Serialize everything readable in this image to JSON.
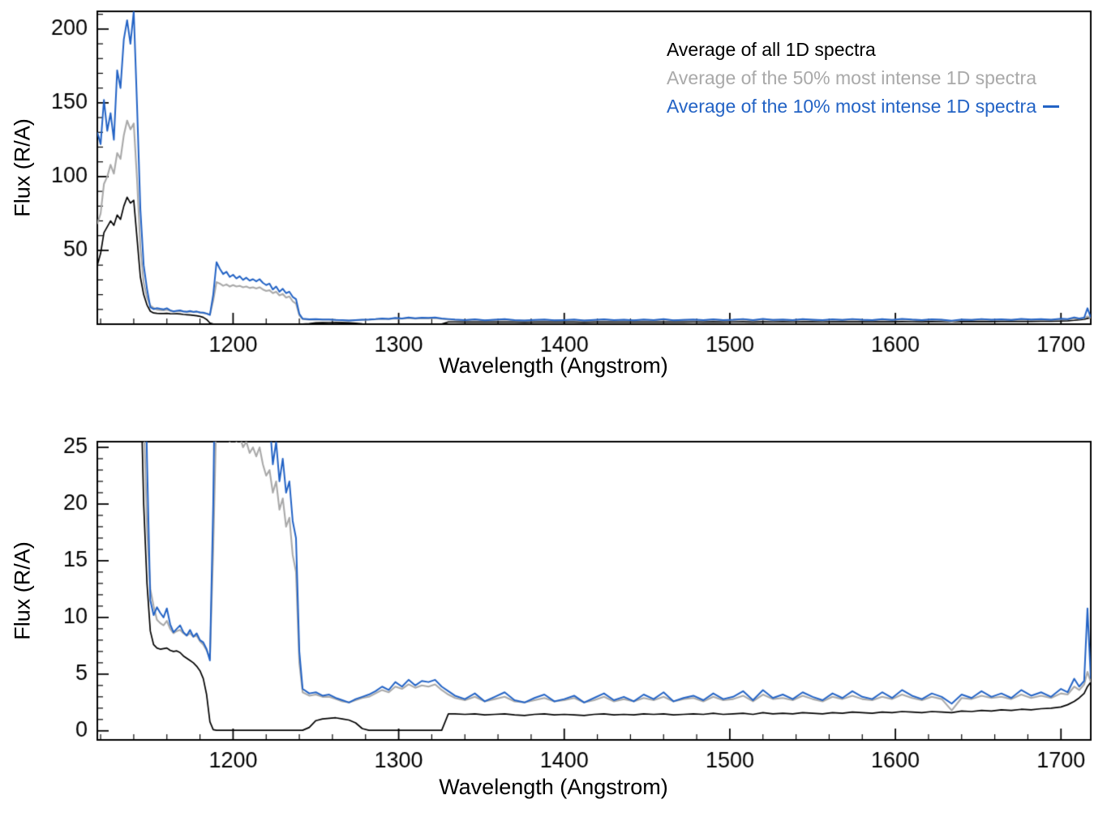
{
  "figure": {
    "background": "#ffffff"
  },
  "legend": {
    "items": [
      {
        "label": "Average of all 1D spectra",
        "color": "#000000",
        "line_sample": false
      },
      {
        "label": "Average of the 50% most intense 1D spectra",
        "color": "#a9a9a9",
        "line_sample": false
      },
      {
        "label": "Average of the 10% most intense 1D spectra",
        "color": "#2363c5",
        "line_sample": true
      }
    ]
  },
  "chart_data": {
    "type": "line",
    "title": "",
    "xlabel": "Wavelength (Angstrom)",
    "ylabel": "Flux (R/A)",
    "grid": false,
    "legend_position": "top-right-inside",
    "x": [
      1118,
      1120,
      1122,
      1124,
      1126,
      1128,
      1130,
      1132,
      1134,
      1136,
      1138,
      1140,
      1142,
      1144,
      1146,
      1148,
      1150,
      1152,
      1154,
      1156,
      1158,
      1160,
      1162,
      1164,
      1166,
      1168,
      1170,
      1172,
      1174,
      1176,
      1178,
      1180,
      1182,
      1184,
      1186,
      1188,
      1190,
      1192,
      1194,
      1196,
      1198,
      1200,
      1202,
      1204,
      1206,
      1208,
      1210,
      1212,
      1214,
      1216,
      1218,
      1220,
      1222,
      1224,
      1226,
      1228,
      1230,
      1232,
      1234,
      1236,
      1238,
      1240,
      1242,
      1246,
      1250,
      1254,
      1258,
      1262,
      1266,
      1270,
      1274,
      1278,
      1282,
      1286,
      1290,
      1294,
      1298,
      1302,
      1306,
      1310,
      1314,
      1318,
      1322,
      1326,
      1330,
      1334,
      1340,
      1346,
      1352,
      1358,
      1364,
      1370,
      1376,
      1382,
      1388,
      1394,
      1400,
      1406,
      1412,
      1418,
      1424,
      1430,
      1436,
      1442,
      1448,
      1454,
      1460,
      1466,
      1472,
      1478,
      1484,
      1490,
      1496,
      1502,
      1508,
      1514,
      1520,
      1526,
      1532,
      1538,
      1544,
      1550,
      1556,
      1562,
      1568,
      1574,
      1580,
      1586,
      1592,
      1598,
      1604,
      1610,
      1616,
      1622,
      1628,
      1634,
      1640,
      1646,
      1652,
      1658,
      1664,
      1670,
      1676,
      1682,
      1688,
      1694,
      1700,
      1704,
      1708,
      1711,
      1714,
      1716,
      1718
    ],
    "series": [
      {
        "name": "Average of all 1D spectra",
        "color": "#000000",
        "width": 1.7,
        "values": [
          40,
          48,
          62,
          66,
          70,
          67,
          74,
          71,
          80,
          86,
          82,
          84,
          58,
          32,
          20,
          13,
          8.8,
          7.6,
          7.3,
          7.2,
          7.25,
          7.3,
          7.1,
          7,
          7.05,
          6.9,
          6.6,
          6.4,
          6.2,
          6,
          5.7,
          5.3,
          4.6,
          3.2,
          0.8,
          0.1,
          0.05,
          0.05,
          0.05,
          0.05,
          0.05,
          0.05,
          0.05,
          0.05,
          0.05,
          0.05,
          0.05,
          0.05,
          0.05,
          0.05,
          0.05,
          0.05,
          0.05,
          0.05,
          0.05,
          0.05,
          0.05,
          0.05,
          0.05,
          0.05,
          0.05,
          0.05,
          0.05,
          0.3,
          0.9,
          1.05,
          1.1,
          1.15,
          1.05,
          0.95,
          0.7,
          0.2,
          0.05,
          0.05,
          0.05,
          0.05,
          0.05,
          0.05,
          0.05,
          0.05,
          0.05,
          0.05,
          0.05,
          0.05,
          1.5,
          1.5,
          1.45,
          1.5,
          1.4,
          1.45,
          1.5,
          1.4,
          1.35,
          1.45,
          1.5,
          1.4,
          1.45,
          1.4,
          1.35,
          1.45,
          1.5,
          1.4,
          1.45,
          1.4,
          1.5,
          1.45,
          1.5,
          1.4,
          1.45,
          1.5,
          1.45,
          1.55,
          1.45,
          1.5,
          1.55,
          1.45,
          1.6,
          1.5,
          1.55,
          1.5,
          1.6,
          1.55,
          1.5,
          1.6,
          1.55,
          1.65,
          1.6,
          1.55,
          1.65,
          1.6,
          1.7,
          1.65,
          1.6,
          1.7,
          1.65,
          1.6,
          1.75,
          1.7,
          1.8,
          1.75,
          1.85,
          1.8,
          1.9,
          1.85,
          1.95,
          2,
          2.1,
          2.3,
          2.6,
          2.9,
          3.3,
          3.9,
          4.3
        ]
      },
      {
        "name": "Average of the 50% most intense 1D spectra",
        "color": "#a9a9a9",
        "width": 2.1,
        "values": [
          68,
          75,
          95,
          100,
          108,
          102,
          116,
          112,
          128,
          138,
          132,
          136,
          98,
          52,
          28,
          18,
          12.5,
          11,
          9.8,
          9.5,
          9.3,
          9.7,
          9,
          8.6,
          8.8,
          8.9,
          8.6,
          8.4,
          8.6,
          8.3,
          8.4,
          7.9,
          7.6,
          7.1,
          6.4,
          16,
          28.5,
          27.5,
          26,
          27,
          25.5,
          26.5,
          25.5,
          26,
          25,
          25.5,
          24.5,
          25,
          24.2,
          25,
          23.5,
          22.5,
          23,
          21,
          22,
          19.5,
          20.5,
          18,
          18.8,
          15.5,
          14,
          6,
          3.4,
          3.1,
          3.2,
          3,
          3,
          2.8,
          2.6,
          2.5,
          2.7,
          2.9,
          3,
          3.3,
          3.6,
          3.4,
          3.9,
          3.7,
          4.1,
          3.8,
          4,
          3.9,
          4.1,
          3.6,
          3.2,
          2.9,
          2.7,
          3,
          2.6,
          2.8,
          3,
          2.6,
          2.5,
          2.7,
          2.9,
          2.6,
          2.7,
          2.9,
          2.5,
          2.7,
          3,
          2.6,
          2.8,
          2.6,
          2.9,
          2.7,
          3,
          2.6,
          2.8,
          2.9,
          2.6,
          3,
          2.7,
          2.8,
          3.1,
          2.6,
          3.2,
          2.8,
          2.9,
          2.7,
          3.1,
          2.8,
          2.6,
          3,
          2.8,
          3.1,
          2.8,
          2.7,
          3,
          2.8,
          3.2,
          2.9,
          2.7,
          3,
          2.8,
          1.8,
          2.9,
          2.8,
          3.1,
          2.9,
          3,
          2.8,
          3.2,
          2.9,
          3.1,
          2.9,
          3.3,
          3.2,
          3.9,
          3.6,
          4.1,
          5.2,
          4.3
        ]
      },
      {
        "name": "Average of the 10% most intense 1D spectra",
        "color": "#2363c5",
        "width": 2.0,
        "values": [
          130,
          122,
          152,
          131,
          143,
          125,
          172,
          160,
          193,
          206,
          190,
          212,
          148,
          78,
          40,
          24,
          11.5,
          10.2,
          10.9,
          10.4,
          10,
          10.8,
          9.4,
          8.7,
          9,
          9.3,
          8.7,
          8.4,
          8.9,
          8.3,
          8.6,
          8,
          7.8,
          7.2,
          6.2,
          20,
          42,
          37.5,
          34,
          35.5,
          32,
          33.5,
          31,
          32.5,
          30,
          31.5,
          29.5,
          30.5,
          29,
          30.5,
          28,
          26.5,
          27.5,
          23.5,
          25.5,
          22,
          24,
          21,
          22,
          18.5,
          17,
          7,
          3.7,
          3.3,
          3.4,
          3.1,
          3.2,
          2.9,
          2.7,
          2.5,
          2.8,
          3,
          3.2,
          3.5,
          3.9,
          3.6,
          4.3,
          3.9,
          4.5,
          4,
          4.4,
          4.3,
          4.5,
          3.9,
          3.5,
          3.1,
          2.8,
          3.3,
          2.6,
          3,
          3.4,
          2.7,
          2.5,
          2.9,
          3.2,
          2.6,
          2.8,
          3.1,
          2.5,
          2.9,
          3.3,
          2.7,
          3,
          2.6,
          3.2,
          2.8,
          3.4,
          2.6,
          2.9,
          3.1,
          2.7,
          3.3,
          2.8,
          3,
          3.5,
          2.7,
          3.6,
          2.9,
          3.2,
          2.8,
          3.4,
          3,
          2.7,
          3.3,
          2.9,
          3.5,
          3,
          2.8,
          3.4,
          2.9,
          3.6,
          3.1,
          2.8,
          3.3,
          3,
          2.4,
          3.2,
          2.9,
          3.5,
          3,
          3.3,
          2.9,
          3.6,
          3.1,
          3.4,
          3,
          3.7,
          3.4,
          4.6,
          3.9,
          4.4,
          10.8,
          4.6
        ]
      }
    ],
    "panels": [
      {
        "name": "full-scale-spectrum",
        "xlabel": "Wavelength (Angstrom)",
        "ylabel": "Flux (R/A)",
        "xlim": [
          1118,
          1718
        ],
        "ylim": [
          0,
          212
        ],
        "xticks": [
          1200,
          1300,
          1400,
          1500,
          1600,
          1700
        ],
        "yticks": [
          50,
          100,
          150,
          200
        ],
        "x_minor": 20,
        "y_minor": 10
      },
      {
        "name": "zoomed-spectrum",
        "xlabel": "Wavelength (Angstrom)",
        "ylabel": "Flux (R/A)",
        "xlim": [
          1118,
          1718
        ],
        "ylim": [
          -0.8,
          25.5
        ],
        "xticks": [
          1200,
          1300,
          1400,
          1500,
          1600,
          1700
        ],
        "yticks": [
          0,
          5,
          10,
          15,
          20,
          25
        ],
        "x_minor": 20,
        "y_minor": 1
      }
    ]
  }
}
